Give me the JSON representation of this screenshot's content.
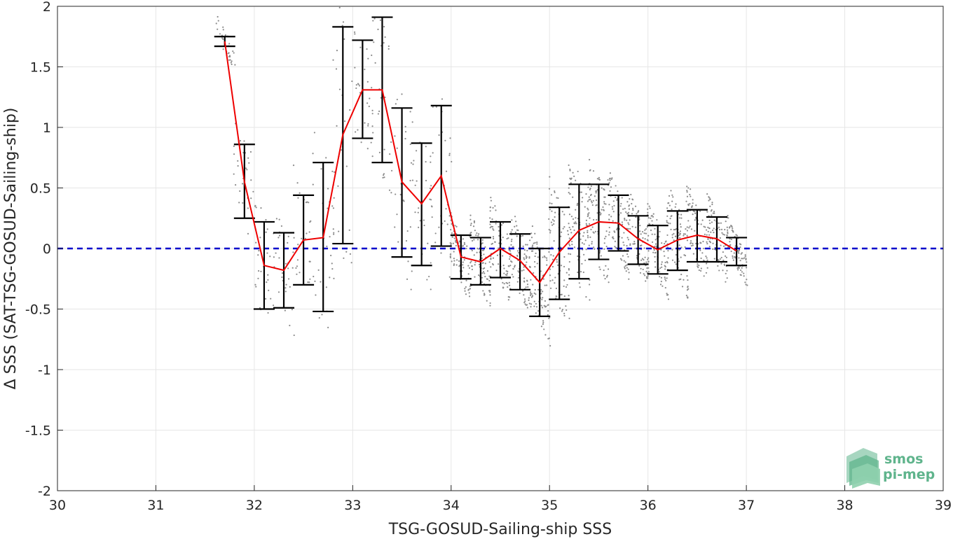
{
  "chart_data": {
    "type": "line",
    "xlabel": "TSG-GOSUD-Sailing-ship SSS",
    "ylabel": "Δ SSS (SAT-TSG-GOSUD-Sailing-ship)",
    "xlim": [
      30,
      39
    ],
    "ylim": [
      -2,
      2
    ],
    "x_ticks": [
      30,
      31,
      32,
      33,
      34,
      35,
      36,
      37,
      38,
      39
    ],
    "y_ticks": [
      -2,
      -1.5,
      -1,
      -0.5,
      0,
      0.5,
      1,
      1.5,
      2
    ],
    "grid": true,
    "reference_line": {
      "y": 0,
      "color": "#0000cc",
      "style": "dashed"
    },
    "series": [
      {
        "color": "#ee0000",
        "x": [
          31.7,
          31.9,
          32.1,
          32.3,
          32.5,
          32.7,
          32.9,
          33.1,
          33.3,
          33.5,
          33.7,
          33.9,
          34.1,
          34.3,
          34.5,
          34.7,
          34.9,
          35.1,
          35.3,
          35.5,
          35.7,
          35.9,
          36.1,
          36.3,
          36.5,
          36.7,
          36.9
        ],
        "mean": [
          1.71,
          0.55,
          -0.14,
          -0.18,
          0.07,
          0.09,
          0.94,
          1.31,
          1.31,
          0.55,
          0.37,
          0.6,
          -0.07,
          -0.11,
          0.0,
          -0.1,
          -0.28,
          -0.03,
          0.15,
          0.22,
          0.21,
          0.08,
          -0.01,
          0.07,
          0.11,
          0.08,
          -0.02
        ],
        "err_lower": [
          1.67,
          0.25,
          -0.5,
          -0.49,
          -0.3,
          -0.52,
          0.04,
          0.91,
          0.71,
          -0.07,
          -0.14,
          0.02,
          -0.25,
          -0.3,
          -0.24,
          -0.34,
          -0.56,
          -0.42,
          -0.25,
          -0.09,
          -0.02,
          -0.13,
          -0.21,
          -0.18,
          -0.11,
          -0.11,
          -0.14
        ],
        "err_upper": [
          1.75,
          0.86,
          0.22,
          0.13,
          0.44,
          0.71,
          1.83,
          1.72,
          1.91,
          1.16,
          0.87,
          1.18,
          0.11,
          0.09,
          0.22,
          0.12,
          0.0,
          0.34,
          0.53,
          0.53,
          0.44,
          0.27,
          0.19,
          0.31,
          0.32,
          0.26,
          0.09
        ]
      }
    ],
    "scatter_color": "#8c8c8c"
  },
  "logo": {
    "line1": "smos",
    "line2": "pi-mep",
    "color": "#5fb48c"
  }
}
